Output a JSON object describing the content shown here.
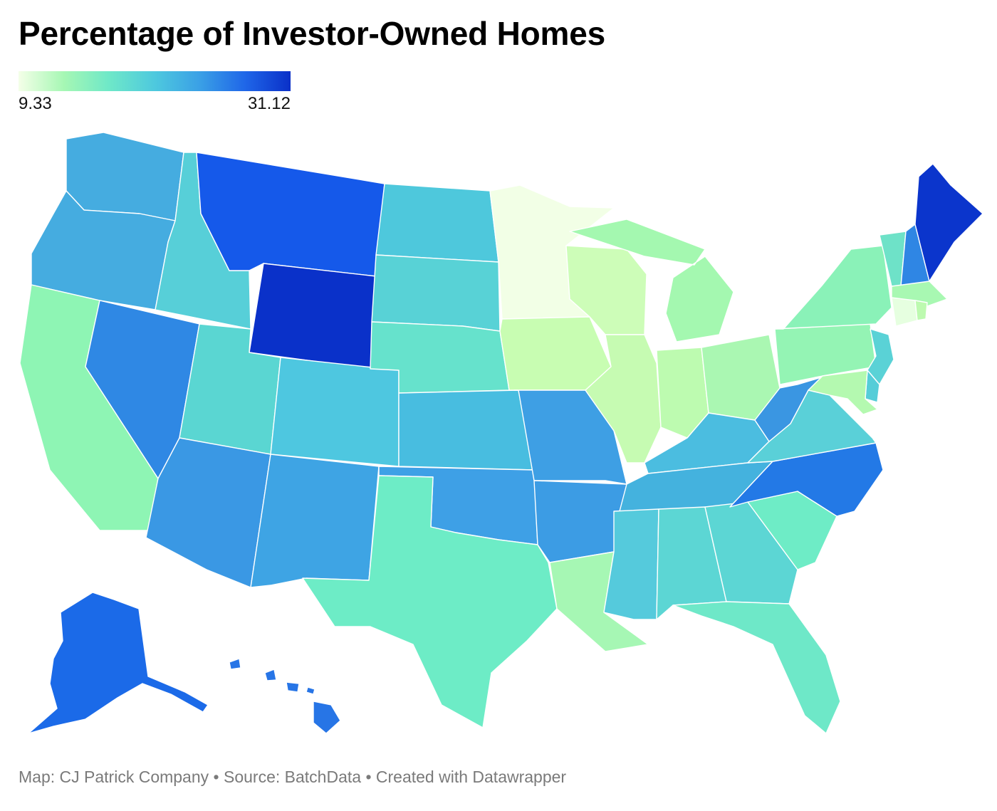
{
  "title": "Percentage of Investor-Owned Homes",
  "legend": {
    "min_label": "9.33",
    "max_label": "31.12",
    "min": 9.33,
    "max": 31.12,
    "gradient_colors": [
      "#f4ffe8",
      "#a6f7b4",
      "#6ee8c8",
      "#4ec9de",
      "#3aa0e6",
      "#1f66e8",
      "#0a30c8"
    ]
  },
  "footer": {
    "credit": "Map: CJ Patrick Company",
    "source": "Source: BatchData",
    "tool": "Created with Datawrapper",
    "separator": "•"
  },
  "map": {
    "type": "choropleth",
    "region": "United States",
    "states": {
      "WA": {
        "color": "#45ace0"
      },
      "OR": {
        "color": "#45ace0"
      },
      "CA": {
        "color": "#8ef5b4"
      },
      "NV": {
        "color": "#2f88e4"
      },
      "ID": {
        "color": "#57cfd8"
      },
      "MT": {
        "color": "#1559ea"
      },
      "WY": {
        "color": "#0a31c9"
      },
      "UT": {
        "color": "#5ad6d2"
      },
      "CO": {
        "color": "#4ec7e0"
      },
      "AZ": {
        "color": "#3a98e4"
      },
      "NM": {
        "color": "#3ea4e4"
      },
      "ND": {
        "color": "#4ec8dc"
      },
      "SD": {
        "color": "#58d2d6"
      },
      "NE": {
        "color": "#66e2cc"
      },
      "KS": {
        "color": "#48bde0"
      },
      "OK": {
        "color": "#3ea0e6"
      },
      "TX": {
        "color": "#6decc6"
      },
      "MN": {
        "color": "#f2ffe6"
      },
      "IA": {
        "color": "#c8fdb2"
      },
      "MO": {
        "color": "#3e9fe4"
      },
      "AR": {
        "color": "#3c9ce4"
      },
      "LA": {
        "color": "#a6f7b4"
      },
      "WI": {
        "color": "#cdfdb8"
      },
      "IL": {
        "color": "#c6fbb2"
      },
      "MI": {
        "color": "#a4f8b0"
      },
      "IN": {
        "color": "#bdfbb0"
      },
      "OH": {
        "color": "#aaf7b2"
      },
      "KY": {
        "color": "#4bbde0"
      },
      "TN": {
        "color": "#44b2de"
      },
      "MS": {
        "color": "#55cadc"
      },
      "AL": {
        "color": "#5cd6d4"
      },
      "GA": {
        "color": "#5cd6d4"
      },
      "FL": {
        "color": "#6ee8c8"
      },
      "SC": {
        "color": "#6eecc6"
      },
      "NC": {
        "color": "#2379e6"
      },
      "VA": {
        "color": "#5ad0d8"
      },
      "WV": {
        "color": "#3a96e2"
      },
      "PA": {
        "color": "#94f4b4"
      },
      "NY": {
        "color": "#8af2b8"
      },
      "VT": {
        "color": "#6ee2c8"
      },
      "NH": {
        "color": "#2f86e4"
      },
      "ME": {
        "color": "#0b35cc"
      },
      "MA": {
        "color": "#a8f8b2"
      },
      "CT": {
        "color": "#e6ffe0"
      },
      "RI": {
        "color": "#bdfab0"
      },
      "NJ": {
        "color": "#5ad2d6"
      },
      "DE": {
        "color": "#55cdd8"
      },
      "MD": {
        "color": "#b4f9b0"
      },
      "AK": {
        "color": "#1b6ae8"
      },
      "HI": {
        "color": "#2775e6"
      }
    }
  }
}
